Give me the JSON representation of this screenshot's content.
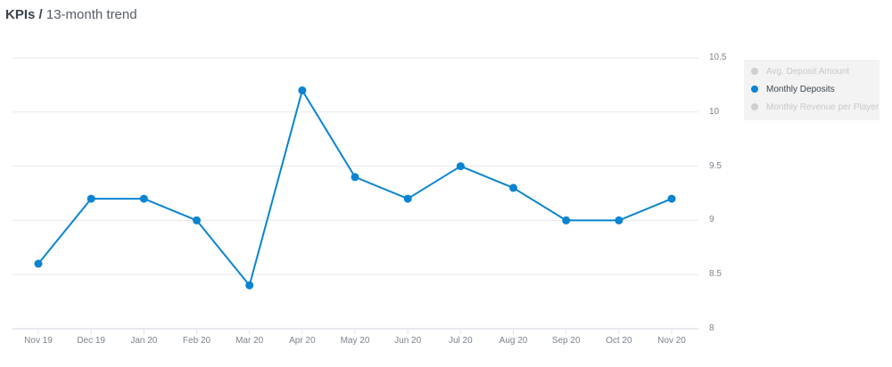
{
  "header": {
    "title_bold": "KPIs /",
    "title_rest": "13-month trend"
  },
  "legend": {
    "items": [
      {
        "label": "Avg. Deposit Amount",
        "active": false
      },
      {
        "label": "Monthly Deposits",
        "active": true,
        "color": "#0a84d0"
      },
      {
        "label": "Monthly Revenue per Player",
        "active": false
      }
    ]
  },
  "chart_data": {
    "type": "line",
    "title": "KPIs / 13-month trend",
    "categories": [
      "Nov 19",
      "Dec 19",
      "Jan 20",
      "Feb 20",
      "Mar 20",
      "Apr 20",
      "May 20",
      "Jun 20",
      "Jul 20",
      "Aug 20",
      "Sep 20",
      "Oct 20",
      "Nov 20"
    ],
    "series": [
      {
        "name": "Monthly Deposits",
        "color": "#0a84d0",
        "values": [
          8.6,
          9.2,
          9.2,
          9.0,
          8.4,
          10.2,
          9.4,
          9.2,
          9.5,
          9.3,
          9.0,
          9.0,
          9.2
        ]
      }
    ],
    "hidden_series": [
      "Avg. Deposit Amount",
      "Monthly Revenue per Player"
    ],
    "xlabel": "",
    "ylabel": "",
    "ylim": [
      8,
      10.5
    ],
    "yticks": [
      "10.5",
      "10",
      "9.5",
      "9",
      "8.5",
      "8"
    ],
    "grid": true,
    "legend_position": "right-top",
    "y_axis_position": "right"
  }
}
